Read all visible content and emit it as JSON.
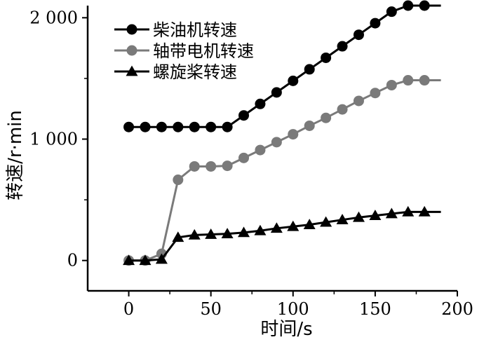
{
  "chart_data": {
    "type": "line",
    "xlabel": "时间/s",
    "ylabel": "转速/r·min",
    "xlim": [
      -25,
      200
    ],
    "ylim": [
      -250,
      2100
    ],
    "xticks": [
      0,
      50,
      100,
      150,
      200
    ],
    "xtick_labels": [
      "0",
      "50",
      "100",
      "150",
      "200"
    ],
    "yticks": [
      0,
      1000,
      2000
    ],
    "ytick_labels": [
      "0",
      "1 000",
      "2 000"
    ],
    "grid": false,
    "legend_position": "top-left",
    "line_end_x": 190,
    "series": [
      {
        "name": "柴油机转速",
        "marker": "circle",
        "color": "#000000",
        "x": [
          0,
          10,
          20,
          30,
          40,
          50,
          60,
          70,
          80,
          90,
          100,
          110,
          120,
          130,
          140,
          150,
          160,
          170,
          180
        ],
        "y": [
          1100,
          1100,
          1100,
          1100,
          1100,
          1100,
          1100,
          1195,
          1290,
          1385,
          1480,
          1575,
          1670,
          1765,
          1860,
          1955,
          2050,
          2100,
          2100
        ],
        "end_y": 2100
      },
      {
        "name": "轴带电机转速",
        "marker": "circle",
        "color": "#7a7a7a",
        "x": [
          0,
          10,
          20,
          30,
          40,
          50,
          60,
          70,
          80,
          90,
          100,
          110,
          120,
          130,
          140,
          150,
          160,
          170,
          180
        ],
        "y": [
          0,
          0,
          55,
          665,
          775,
          775,
          780,
          845,
          910,
          975,
          1040,
          1110,
          1175,
          1245,
          1315,
          1380,
          1445,
          1485,
          1485
        ],
        "end_y": 1485
      },
      {
        "name": "螺旋桨转速",
        "marker": "triangle",
        "color": "#000000",
        "x": [
          0,
          10,
          20,
          30,
          40,
          50,
          60,
          70,
          80,
          90,
          100,
          110,
          120,
          130,
          140,
          150,
          160,
          170,
          180
        ],
        "y": [
          0,
          0,
          10,
          190,
          210,
          215,
          220,
          230,
          245,
          265,
          280,
          295,
          315,
          335,
          355,
          370,
          385,
          400,
          400
        ],
        "end_y": 400
      }
    ]
  }
}
